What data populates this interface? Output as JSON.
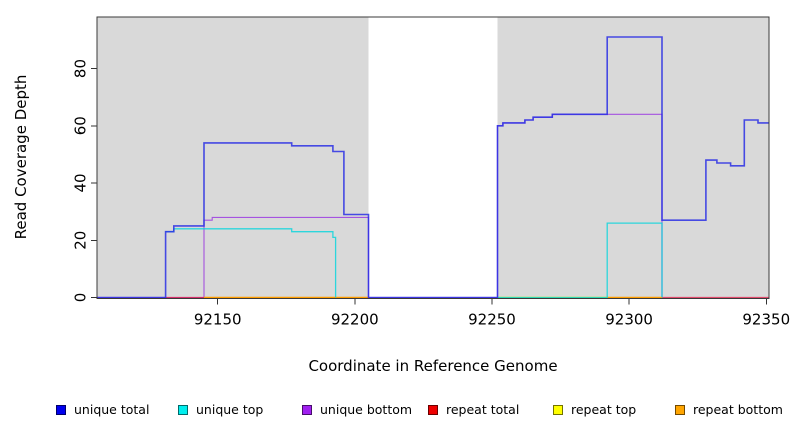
{
  "chart_data": {
    "type": "line",
    "subtype": "step-coverage-plot",
    "title": "",
    "xlabel": "Coordinate in Reference Genome",
    "ylabel": "Read Coverage Depth",
    "axes": {
      "x_domain": [
        92106,
        92351
      ],
      "y_domain": [
        0,
        98
      ],
      "x_ticks": [
        92150,
        92200,
        92250,
        92300,
        92350
      ],
      "y_ticks": [
        0,
        20,
        40,
        60,
        80
      ],
      "grid": false,
      "panel_background": "#d9d9d9",
      "gap_background": "#ffffff",
      "box_color": "#3a3a3a",
      "tick_color": "#333333"
    },
    "gap_region": {
      "x_start": 92205,
      "x_end": 92252,
      "note": "white vertical band, no shading"
    },
    "series": [
      {
        "name": "unique bottom",
        "color": "rgba(158,68,224,0.9)",
        "width": 1.1,
        "segments": [
          [
            [
              92106,
              0
            ],
            [
              92145,
              27
            ],
            [
              92148,
              28
            ],
            [
              92205,
              0
            ],
            [
              92252,
              60
            ],
            [
              92254,
              61
            ],
            [
              92262,
              62
            ],
            [
              92265,
              63
            ],
            [
              92272,
              64
            ],
            [
              92312,
              0
            ]
          ]
        ]
      },
      {
        "name": "repeat top",
        "color": "rgba(242,232,0,0.9)",
        "width": 1.5,
        "segments": [
          [
            [
              92252,
              0
            ],
            [
              92292,
              0
            ]
          ]
        ]
      },
      {
        "name": "repeat total",
        "color": "rgba(226,38,80,0.8)",
        "width": 1.3,
        "segments": [
          [
            [
              92131,
              0
            ],
            [
              92145,
              0
            ]
          ],
          [
            [
              92312,
              0
            ],
            [
              92351,
              0
            ]
          ]
        ]
      },
      {
        "name": "repeat bottom",
        "color": "#ff9d00",
        "width": 1.5,
        "segments": [
          [
            [
              92145,
              0
            ],
            [
              92205,
              0
            ]
          ],
          [
            [
              92292,
              0
            ],
            [
              92312,
              0
            ]
          ]
        ]
      },
      {
        "name": "unique top",
        "color": "rgba(0,212,220,0.8)",
        "width": 1.3,
        "segments": [
          [
            [
              92131,
              23
            ],
            [
              92134,
              24
            ],
            [
              92177,
              23
            ],
            [
              92192,
              21
            ],
            [
              92193,
              0
            ]
          ],
          [
            [
              92252,
              0
            ],
            [
              92292,
              26
            ],
            [
              92312,
              0
            ]
          ]
        ]
      },
      {
        "name": "unique total",
        "color": "rgba(42,47,228,0.85)",
        "width": 1.6,
        "segments": [
          [
            [
              92106,
              0
            ],
            [
              92131,
              23
            ],
            [
              92134,
              25
            ],
            [
              92145,
              54
            ],
            [
              92177,
              53
            ],
            [
              92192,
              51
            ],
            [
              92196,
              29
            ],
            [
              92205,
              0
            ],
            [
              92252,
              60
            ],
            [
              92254,
              61
            ],
            [
              92262,
              62
            ],
            [
              92265,
              63
            ],
            [
              92272,
              64
            ],
            [
              92292,
              91
            ],
            [
              92312,
              27
            ],
            [
              92328,
              48
            ],
            [
              92332,
              47
            ],
            [
              92337,
              46
            ],
            [
              92342,
              62
            ],
            [
              92347,
              61
            ],
            [
              92351,
              61
            ]
          ]
        ]
      }
    ],
    "legend": {
      "position": "bottom",
      "items": [
        {
          "label": "unique total",
          "color": "#0000ee"
        },
        {
          "label": "unique top",
          "color": "#00eeee"
        },
        {
          "label": "unique bottom",
          "color": "#a020f0"
        },
        {
          "label": "repeat total",
          "color": "#ee0000"
        },
        {
          "label": "repeat top",
          "color": "#ffff00"
        },
        {
          "label": "repeat bottom",
          "color": "#ffa500"
        }
      ]
    }
  }
}
